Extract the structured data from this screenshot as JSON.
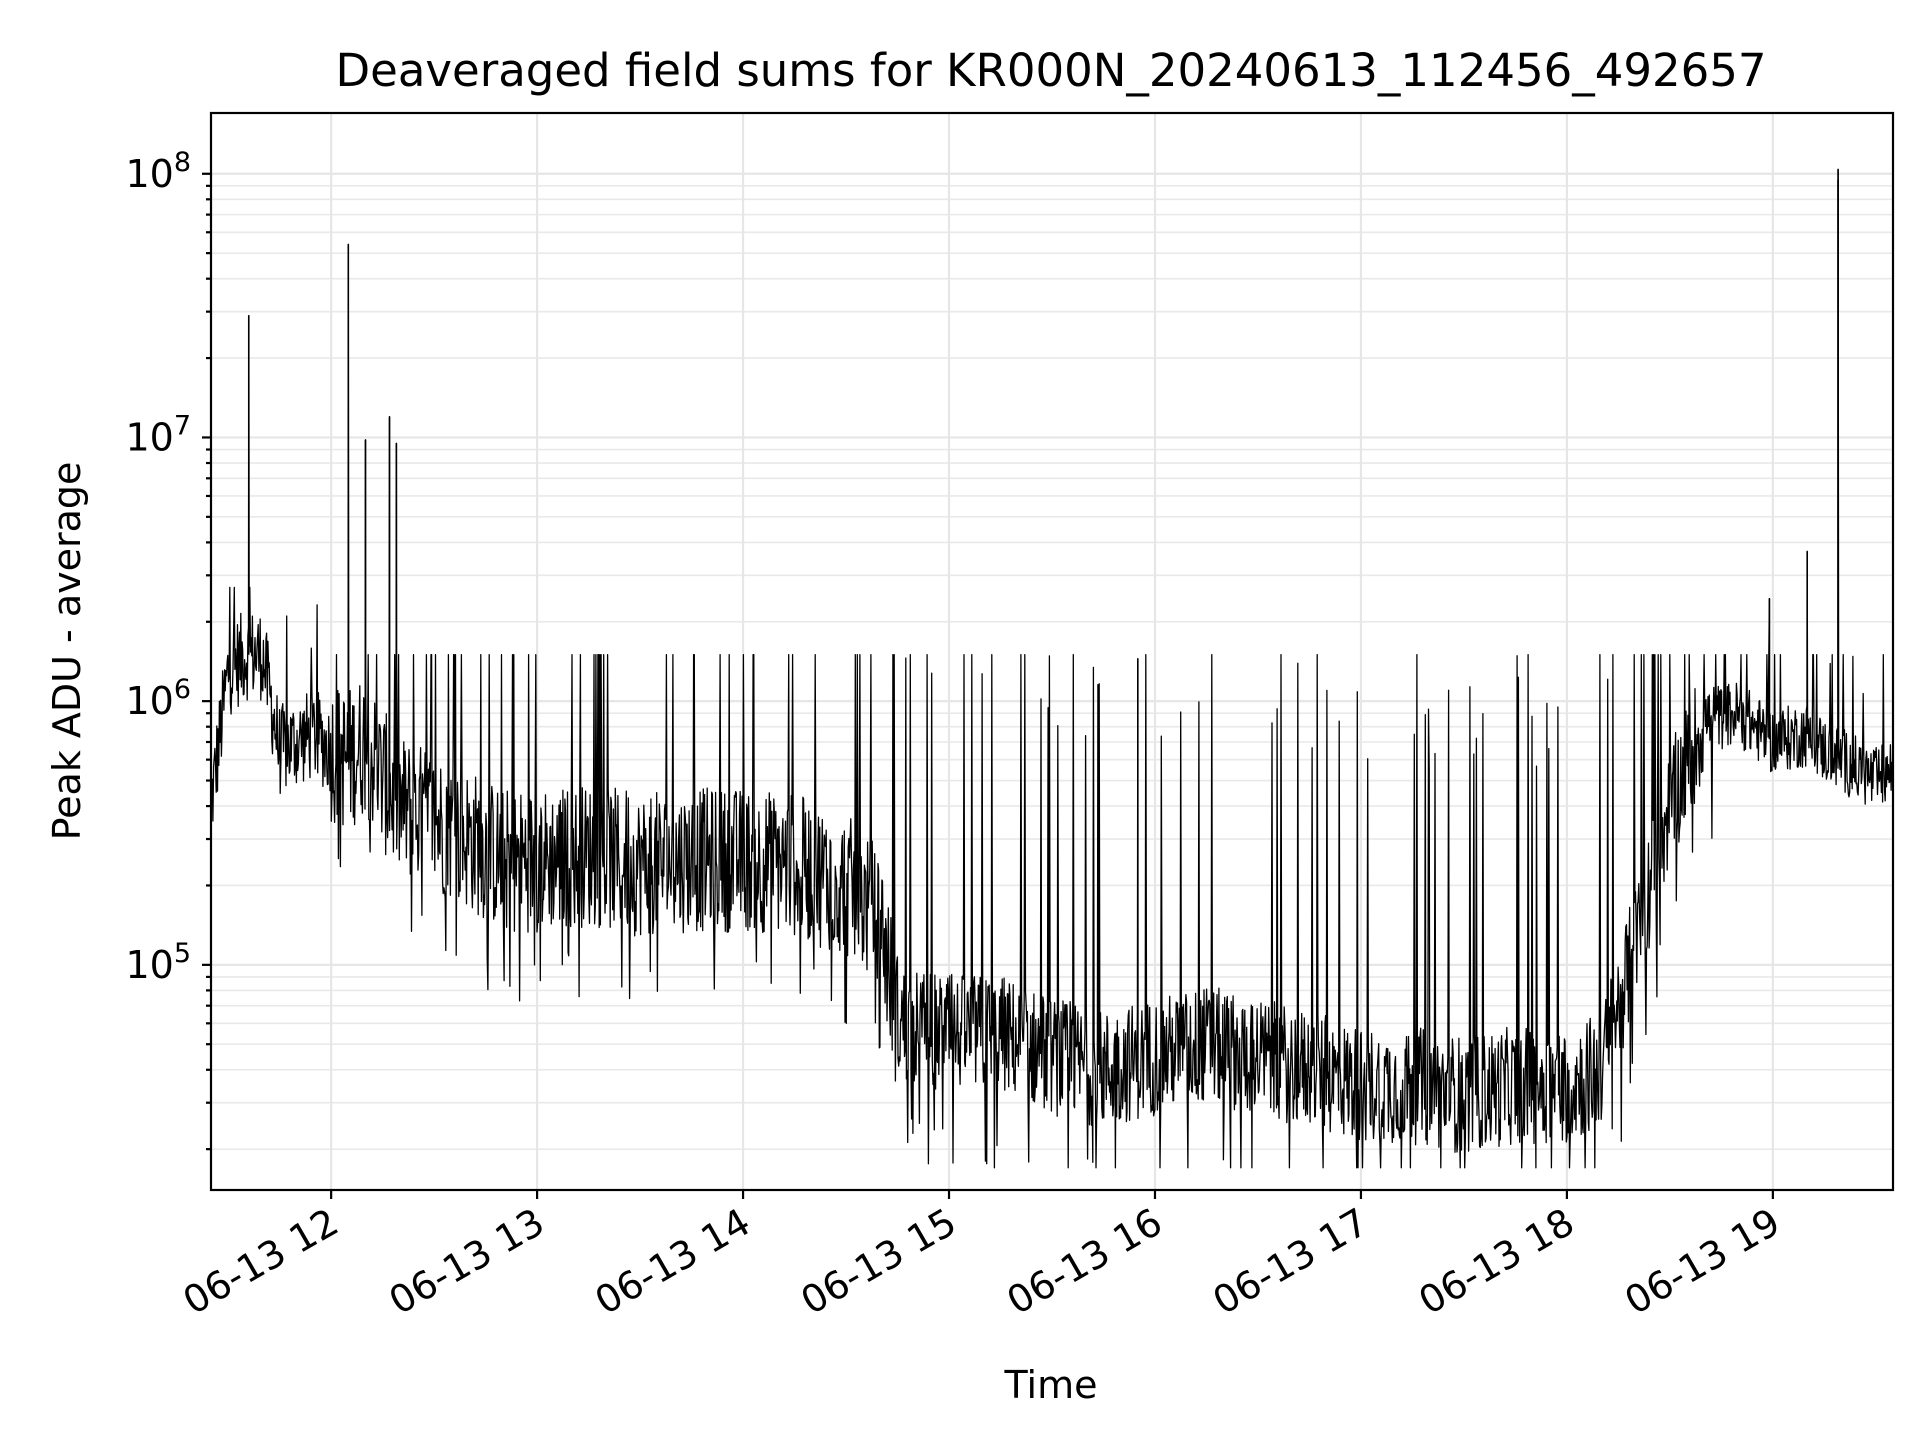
{
  "chart_data": {
    "type": "line",
    "title": "Deaveraged field sums for KR000N_20240613_112456_492657",
    "xlabel": "Time",
    "ylabel": "Peak ADU - average",
    "yscale": "log",
    "ylim": [
      14000,
      170000000
    ],
    "xlim": [
      "2024-06-13 11:25",
      "2024-06-13 19:35"
    ],
    "grid": true,
    "x_ticks": [
      "06-13 12",
      "06-13 13",
      "06-13 14",
      "06-13 15",
      "06-13 16",
      "06-13 17",
      "06-13 18",
      "06-13 19"
    ],
    "y_ticks": [
      {
        "base": "10",
        "exp": "5"
      },
      {
        "base": "10",
        "exp": "6"
      },
      {
        "base": "10",
        "exp": "7"
      },
      {
        "base": "10",
        "exp": "8"
      }
    ],
    "series": [
      {
        "color": "#000000",
        "x": [
          "11:25",
          "11:30",
          "11:35",
          "11:40",
          "11:45",
          "11:50",
          "11:55",
          "12:00",
          "12:05",
          "12:10",
          "12:15",
          "12:20",
          "12:30",
          "12:40",
          "12:50",
          "13:00",
          "13:15",
          "13:30",
          "13:45",
          "14:00",
          "14:15",
          "14:30",
          "14:40",
          "14:45",
          "15:00",
          "15:15",
          "15:30",
          "15:45",
          "16:00",
          "16:15",
          "16:30",
          "16:45",
          "17:00",
          "17:15",
          "17:30",
          "17:45",
          "18:00",
          "18:10",
          "18:20",
          "18:30",
          "18:40",
          "18:50",
          "19:00",
          "19:10",
          "19:15",
          "19:20",
          "19:30",
          "19:35"
        ],
        "y": [
          400000,
          1300000,
          1500000,
          1500000,
          650000,
          700000,
          750000,
          650000,
          600000,
          700000,
          500000,
          400000,
          350000,
          300000,
          250000,
          250000,
          260000,
          240000,
          250000,
          250000,
          240000,
          200000,
          150000,
          60000,
          55000,
          55000,
          45000,
          40000,
          45000,
          50000,
          45000,
          40000,
          35000,
          35000,
          32000,
          35000,
          35000,
          40000,
          120000,
          400000,
          850000,
          900000,
          700000,
          750000,
          650000,
          600000,
          500000,
          550000
        ],
        "spikes": [
          {
            "x": "11:36",
            "y": 29000000
          },
          {
            "x": "12:05",
            "y": 54000000
          },
          {
            "x": "12:10",
            "y": 9800000
          },
          {
            "x": "12:17",
            "y": 12000000
          },
          {
            "x": "12:19",
            "y": 9500000
          },
          {
            "x": "15:55",
            "y": 1450000
          },
          {
            "x": "18:59",
            "y": 2450000
          },
          {
            "x": "19:10",
            "y": 3700000
          },
          {
            "x": "19:19",
            "y": 104000000
          },
          {
            "x": "19:19",
            "y": 95000000
          }
        ]
      }
    ]
  }
}
